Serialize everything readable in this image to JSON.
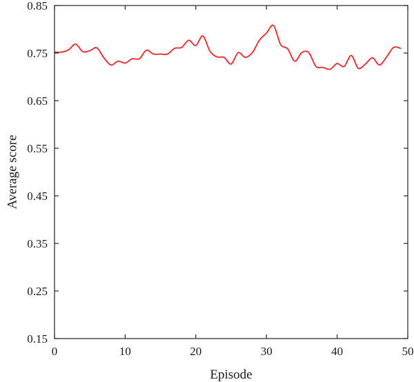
{
  "chart_data": {
    "type": "line",
    "title": "",
    "xlabel": "Episode",
    "ylabel": "Average score",
    "xlim": [
      0,
      50
    ],
    "ylim": [
      0.15,
      0.85
    ],
    "xticks": [
      0,
      10,
      20,
      30,
      40,
      50
    ],
    "xtick_labels": [
      "0",
      "10",
      "20",
      "30",
      "40",
      "50"
    ],
    "yticks": [
      0.15,
      0.25,
      0.35,
      0.45,
      0.55,
      0.65,
      0.75,
      0.85
    ],
    "ytick_labels": [
      "0.15",
      "0.25",
      "0.35",
      "0.45",
      "0.55",
      "0.65",
      "0.75",
      "0.85"
    ],
    "grid": false,
    "legend": "none",
    "series": [
      {
        "color": "#e8262a",
        "x": [
          0,
          1,
          2,
          3,
          4,
          5,
          6,
          7,
          8,
          9,
          10,
          11,
          12,
          13,
          14,
          15,
          16,
          17,
          18,
          19,
          20,
          21,
          22,
          23,
          24,
          25,
          26,
          27,
          28,
          29,
          30,
          31,
          32,
          33,
          34,
          35,
          36,
          37,
          38,
          39,
          40,
          41,
          42,
          43,
          44,
          45,
          46,
          47,
          48,
          49
        ],
        "y": [
          0.752,
          0.752,
          0.757,
          0.769,
          0.753,
          0.755,
          0.761,
          0.74,
          0.725,
          0.733,
          0.729,
          0.738,
          0.738,
          0.756,
          0.748,
          0.748,
          0.748,
          0.76,
          0.762,
          0.777,
          0.766,
          0.786,
          0.754,
          0.742,
          0.741,
          0.727,
          0.751,
          0.741,
          0.751,
          0.777,
          0.792,
          0.808,
          0.768,
          0.759,
          0.733,
          0.751,
          0.751,
          0.722,
          0.72,
          0.716,
          0.728,
          0.722,
          0.745,
          0.718,
          0.727,
          0.74,
          0.725,
          0.742,
          0.762,
          0.76
        ]
      }
    ]
  }
}
